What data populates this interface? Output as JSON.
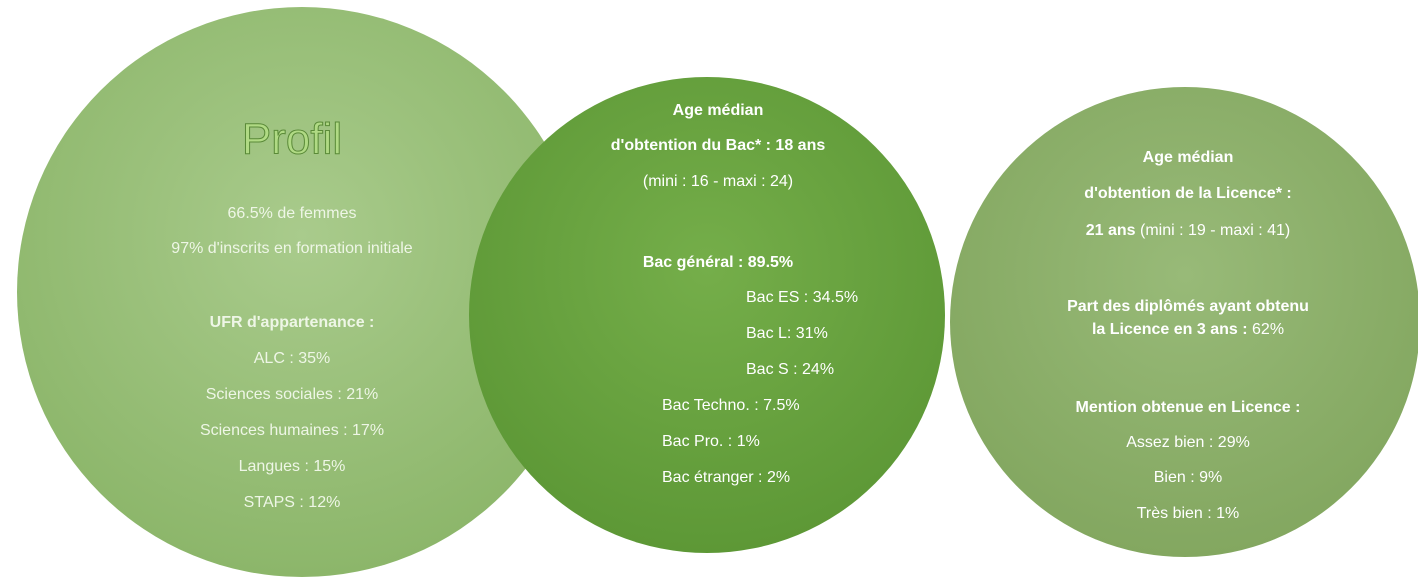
{
  "circles": [
    {
      "title": "Profil",
      "lines": [
        "66.5% de femmes",
        "97% d'inscrits en formation initiale",
        "UFR d'appartenance :",
        "ALC : 35%",
        "Sciences sociales : 21%",
        "Sciences humaines : 17%",
        "Langues : 15%",
        "STAPS : 12%"
      ]
    },
    {
      "lines": [
        "Age médian",
        "d'obtention du Bac* : 18 ans",
        "(mini : 16 - maxi : 24)",
        "Bac général : 89.5%",
        "Bac ES : 34.5%",
        "Bac L: 31%",
        "Bac S : 24%",
        "Bac Techno. : 7.5%",
        "Bac Pro. : 1%",
        "Bac étranger : 2%"
      ]
    },
    {
      "lines": [
        "Age médian",
        "d'obtention de la Licence* :",
        [
          "21 ans",
          "(mini : 19 - maxi : 41)"
        ],
        "Part des diplômés ayant obtenu",
        [
          "la Licence en 3 ans :",
          "62%"
        ],
        "Mention obtenue en Licence :",
        "Assez bien : 29%",
        "Bien : 9%",
        "Très bien : 1%"
      ]
    }
  ]
}
